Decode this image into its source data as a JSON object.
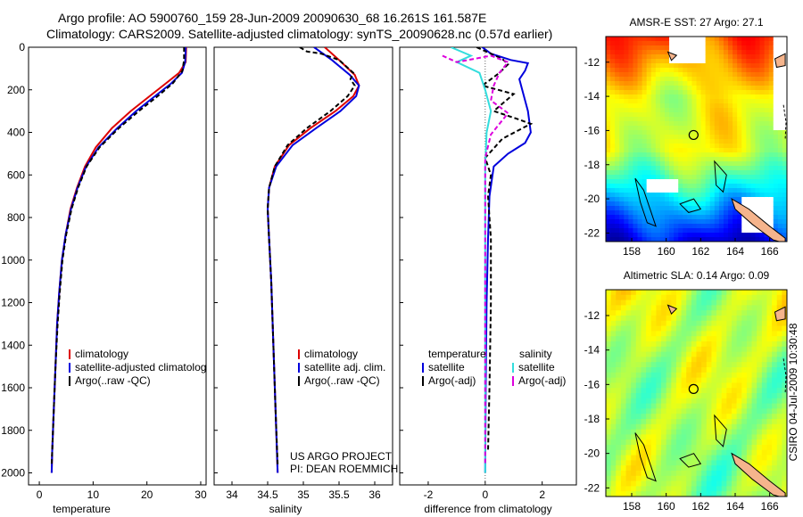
{
  "figure": {
    "title_line1": "Argo profile: AO 5900760_159 28-Jun-2009 20090630_68 16.261S 161.587E",
    "title_line2": "Climatology: CARS2009. Satellite-adjusted climatology: synTS_20090628.nc (0.57d earlier)",
    "side_label": "CSIRO 04-Jul-2009 10:30:48",
    "project_line1": "US ARGO PROJECT",
    "project_line2": "PI: DEAN ROEMMICH",
    "colors": {
      "climatology": "#dd0000",
      "satellite": "#0000dd",
      "argo": "#000000",
      "sal_satellite": "#33dddd",
      "sal_argo": "#dd00dd",
      "land": "#f5b48c"
    }
  },
  "chart_data": [
    {
      "id": "temperature",
      "type": "line",
      "xlabel": "temperature",
      "ylabel": "",
      "xlim": [
        -2,
        31
      ],
      "ylim": [
        0,
        2050
      ],
      "y_inverted": true,
      "xticks": [
        0,
        10,
        20,
        30
      ],
      "yticks": [
        0,
        200,
        400,
        600,
        800,
        1000,
        1200,
        1400,
        1600,
        1800,
        2000
      ],
      "legend_position": "lower-right",
      "legend": [
        "climatology",
        "satellite-adjusted climatology",
        "Argo(..raw -QC)"
      ],
      "series": [
        {
          "name": "climatology",
          "color": "#dd0000",
          "dash": "",
          "points": [
            [
              27.3,
              0
            ],
            [
              27.2,
              70
            ],
            [
              26.0,
              120
            ],
            [
              23.5,
              170
            ],
            [
              20.5,
              230
            ],
            [
              17.0,
              300
            ],
            [
              13.5,
              380
            ],
            [
              10.5,
              470
            ],
            [
              8.5,
              560
            ],
            [
              7.0,
              660
            ],
            [
              5.8,
              760
            ],
            [
              4.9,
              880
            ],
            [
              4.2,
              1000
            ],
            [
              3.7,
              1150
            ],
            [
              3.3,
              1300
            ],
            [
              3.0,
              1500
            ],
            [
              2.7,
              1700
            ],
            [
              2.4,
              1900
            ],
            [
              2.3,
              2000
            ]
          ]
        },
        {
          "name": "satellite-adjusted climatology",
          "color": "#0000dd",
          "dash": "",
          "points": [
            [
              27.2,
              0
            ],
            [
              27.1,
              70
            ],
            [
              26.5,
              120
            ],
            [
              24.5,
              170
            ],
            [
              21.5,
              230
            ],
            [
              18.0,
              300
            ],
            [
              14.5,
              380
            ],
            [
              11.0,
              470
            ],
            [
              8.7,
              560
            ],
            [
              7.1,
              660
            ],
            [
              5.9,
              760
            ],
            [
              4.9,
              880
            ],
            [
              4.2,
              1000
            ],
            [
              3.7,
              1150
            ],
            [
              3.3,
              1300
            ],
            [
              3.0,
              1500
            ],
            [
              2.7,
              1700
            ],
            [
              2.4,
              1900
            ],
            [
              2.3,
              2000
            ]
          ]
        },
        {
          "name": "Argo(..raw -QC)",
          "color": "#000000",
          "dash": "5,3",
          "points": [
            [
              26.9,
              0
            ],
            [
              26.9,
              60
            ],
            [
              26.6,
              110
            ],
            [
              24.8,
              170
            ],
            [
              22.0,
              230
            ],
            [
              18.5,
              300
            ],
            [
              14.8,
              380
            ],
            [
              11.2,
              470
            ],
            [
              8.8,
              560
            ],
            [
              7.2,
              660
            ],
            [
              6.0,
              760
            ],
            [
              5.0,
              880
            ],
            [
              4.3,
              1000
            ],
            [
              3.8,
              1150
            ],
            [
              3.4,
              1300
            ],
            [
              3.0,
              1500
            ],
            [
              2.7,
              1700
            ],
            [
              2.4,
              1900
            ],
            [
              2.3,
              1960
            ]
          ]
        }
      ]
    },
    {
      "id": "salinity",
      "type": "line",
      "xlabel": "salinity",
      "ylabel": "",
      "xlim": [
        33.75,
        36.25
      ],
      "ylim": [
        0,
        2050
      ],
      "y_inverted": true,
      "xticks": [
        34,
        34.5,
        35,
        35.5,
        36
      ],
      "yticks": [
        0,
        200,
        400,
        600,
        800,
        1000,
        1200,
        1400,
        1600,
        1800,
        2000
      ],
      "legend_position": "lower-right",
      "legend": [
        "climatology",
        "satellite adj. clim.",
        "Argo(..raw -QC)"
      ],
      "series": [
        {
          "name": "climatology",
          "color": "#dd0000",
          "dash": "",
          "points": [
            [
              35.3,
              0
            ],
            [
              35.5,
              60
            ],
            [
              35.72,
              130
            ],
            [
              35.78,
              180
            ],
            [
              35.7,
              230
            ],
            [
              35.45,
              300
            ],
            [
              35.1,
              380
            ],
            [
              34.8,
              460
            ],
            [
              34.6,
              560
            ],
            [
              34.52,
              660
            ],
            [
              34.5,
              760
            ],
            [
              34.52,
              900
            ],
            [
              34.55,
              1100
            ],
            [
              34.58,
              1400
            ],
            [
              34.61,
              1700
            ],
            [
              34.64,
              2000
            ]
          ]
        },
        {
          "name": "satellite adj. clim.",
          "color": "#0000dd",
          "dash": "",
          "points": [
            [
              35.15,
              0
            ],
            [
              35.4,
              60
            ],
            [
              35.65,
              130
            ],
            [
              35.78,
              180
            ],
            [
              35.74,
              230
            ],
            [
              35.52,
              300
            ],
            [
              35.18,
              380
            ],
            [
              34.85,
              460
            ],
            [
              34.62,
              560
            ],
            [
              34.52,
              660
            ],
            [
              34.5,
              760
            ],
            [
              34.52,
              900
            ],
            [
              34.55,
              1100
            ],
            [
              34.58,
              1400
            ],
            [
              34.61,
              1700
            ],
            [
              34.64,
              2000
            ]
          ]
        },
        {
          "name": "Argo(..raw -QC)",
          "color": "#000000",
          "dash": "5,3",
          "points": [
            [
              34.95,
              0
            ],
            [
              35.05,
              20
            ],
            [
              35.25,
              30
            ],
            [
              35.5,
              60
            ],
            [
              35.7,
              120
            ],
            [
              35.66,
              150
            ],
            [
              35.72,
              180
            ],
            [
              35.62,
              230
            ],
            [
              35.38,
              300
            ],
            [
              35.05,
              380
            ],
            [
              34.78,
              460
            ],
            [
              34.6,
              560
            ],
            [
              34.52,
              660
            ],
            [
              34.5,
              760
            ],
            [
              34.52,
              900
            ],
            [
              34.55,
              1100
            ],
            [
              34.58,
              1400
            ],
            [
              34.61,
              1700
            ],
            [
              34.64,
              1960
            ]
          ]
        }
      ]
    },
    {
      "id": "difference",
      "type": "line",
      "xlabel": "difference from climatology",
      "ylabel": "",
      "xlim": [
        -3,
        3.2
      ],
      "ylim": [
        0,
        2050
      ],
      "y_inverted": true,
      "xticks": [
        -2,
        0,
        2
      ],
      "yticks": [
        0,
        200,
        400,
        600,
        800,
        1000,
        1200,
        1400,
        1600,
        1800,
        2000
      ],
      "legend_position": "lower-right",
      "legend_headers": [
        "temperature",
        "salinity"
      ],
      "legend": [
        "satellite",
        "Argo(-adj)",
        "satellite",
        "Argo(-adj)"
      ],
      "series": [
        {
          "name": "temperature satellite",
          "color": "#0000dd",
          "dash": "",
          "points": [
            [
              -0.1,
              0
            ],
            [
              0.2,
              30
            ],
            [
              0.9,
              60
            ],
            [
              1.5,
              75
            ],
            [
              1.4,
              110
            ],
            [
              1.2,
              150
            ],
            [
              1.3,
              200
            ],
            [
              1.5,
              300
            ],
            [
              1.6,
              400
            ],
            [
              1.4,
              450
            ],
            [
              0.8,
              500
            ],
            [
              0.3,
              560
            ],
            [
              0.15,
              700
            ],
            [
              0.1,
              900
            ],
            [
              0.05,
              1200
            ],
            [
              0.02,
              1600
            ],
            [
              0.0,
              2000
            ]
          ]
        },
        {
          "name": "temperature Argo(-adj)",
          "color": "#000000",
          "dash": "5,3",
          "points": [
            [
              -0.3,
              0
            ],
            [
              0.2,
              30
            ],
            [
              0.6,
              55
            ],
            [
              0.8,
              80
            ],
            [
              0.5,
              120
            ],
            [
              -0.1,
              180
            ],
            [
              1.0,
              220
            ],
            [
              0.3,
              300
            ],
            [
              1.2,
              340
            ],
            [
              1.6,
              360
            ],
            [
              0.6,
              430
            ],
            [
              0.0,
              520
            ],
            [
              0.2,
              600
            ],
            [
              0.1,
              700
            ],
            [
              0.2,
              900
            ],
            [
              0.2,
              1200
            ],
            [
              0.15,
              1600
            ],
            [
              0.1,
              1900
            ]
          ]
        },
        {
          "name": "salinity satellite",
          "color": "#33dddd",
          "dash": "",
          "points": [
            [
              -1.2,
              0
            ],
            [
              -0.5,
              40
            ],
            [
              -1.0,
              70
            ],
            [
              -0.2,
              120
            ],
            [
              0.0,
              200
            ],
            [
              0.2,
              300
            ],
            [
              0.05,
              400
            ],
            [
              0.0,
              560
            ],
            [
              0.0,
              800
            ],
            [
              0.0,
              1200
            ],
            [
              0.0,
              1600
            ],
            [
              0.0,
              2000
            ]
          ]
        },
        {
          "name": "salinity Argo(-adj)",
          "color": "#dd00dd",
          "dash": "5,3",
          "points": [
            [
              -1.5,
              40
            ],
            [
              -1.0,
              70
            ],
            [
              0.2,
              40
            ],
            [
              0.8,
              70
            ],
            [
              0.5,
              120
            ],
            [
              0.3,
              180
            ],
            [
              0.2,
              250
            ],
            [
              0.8,
              310
            ],
            [
              0.5,
              360
            ],
            [
              0.2,
              410
            ],
            [
              0.0,
              520
            ],
            [
              0.0,
              800
            ],
            [
              0.0,
              1200
            ],
            [
              0.0,
              1600
            ],
            [
              0.0,
              1960
            ]
          ]
        }
      ]
    },
    {
      "id": "sst_map",
      "type": "heatmap",
      "title": "AMSR-E SST: 27  Argo: 27.1",
      "xlim": [
        156.5,
        167
      ],
      "ylim": [
        -22.5,
        -10.5
      ],
      "xticks": [
        158,
        160,
        162,
        164,
        166
      ],
      "yticks": [
        -12,
        -14,
        -16,
        -18,
        -20,
        -22
      ],
      "argo_position": [
        161.587,
        -16.261
      ],
      "colormap": "jet"
    },
    {
      "id": "sla_map",
      "type": "heatmap",
      "title": "Altimetric SLA: 0.14  Argo: 0.09",
      "xlim": [
        156.5,
        167
      ],
      "ylim": [
        -22.5,
        -10.5
      ],
      "xticks": [
        158,
        160,
        162,
        164,
        166
      ],
      "yticks": [
        -12,
        -14,
        -16,
        -18,
        -20,
        -22
      ],
      "argo_position": [
        161.587,
        -16.261
      ],
      "colormap": "jet"
    }
  ]
}
